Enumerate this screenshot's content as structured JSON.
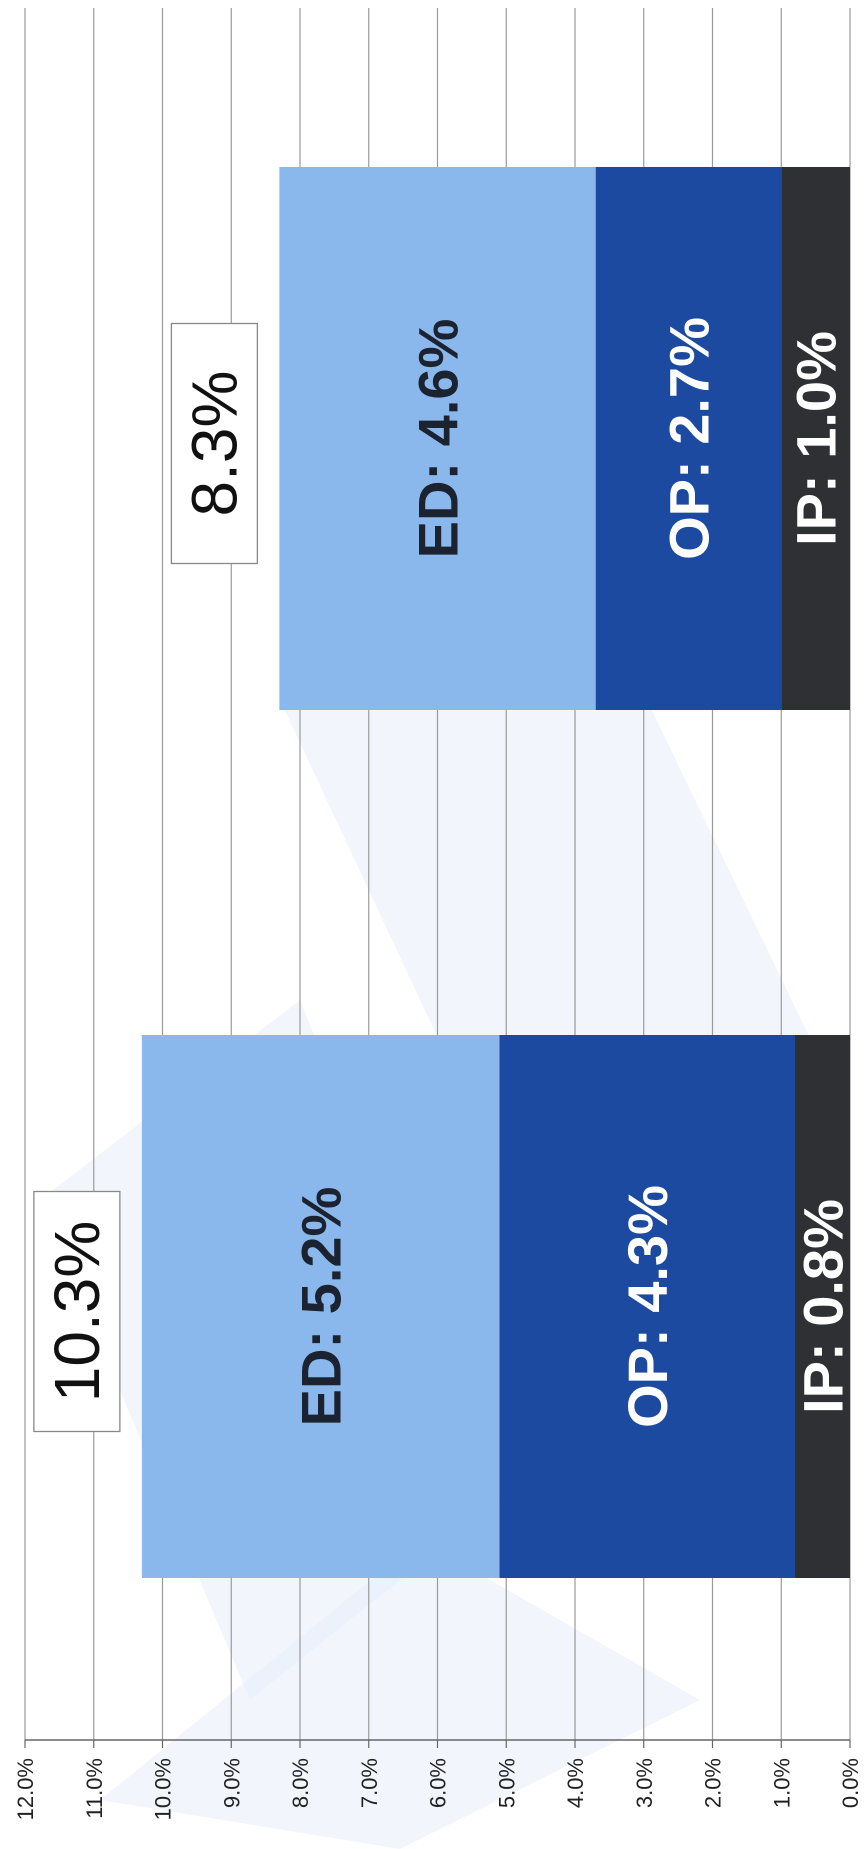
{
  "chart_data": {
    "type": "bar",
    "stacked": true,
    "orientation": "rotated-90-clockwise",
    "title": "",
    "xlabel": "",
    "ylabel": "",
    "ylim": [
      0,
      12
    ],
    "y_ticks": [
      "0.0%",
      "1.0%",
      "2.0%",
      "3.0%",
      "4.0%",
      "5.0%",
      "6.0%",
      "7.0%",
      "8.0%",
      "9.0%",
      "10.0%",
      "11.0%",
      "12.0%"
    ],
    "grid": true,
    "legend": "none",
    "bars": [
      {
        "total": 10.3,
        "total_label": "10.3%",
        "segments": [
          {
            "key": "IP",
            "value": 0.8,
            "label": "IP:  0.8%",
            "color": "#2e3033",
            "text_color": "#ffffff"
          },
          {
            "key": "OP",
            "value": 4.3,
            "label": "OP:  4.3%",
            "color": "#1c4aa0",
            "text_color": "#ffffff"
          },
          {
            "key": "ED",
            "value": 5.2,
            "label": "ED:  5.2%",
            "color": "#8bb8ec",
            "text_color": "#1b2230"
          }
        ]
      },
      {
        "total": 8.3,
        "total_label": "8.3%",
        "segments": [
          {
            "key": "IP",
            "value": 1.0,
            "label": "IP:  1.0%",
            "color": "#2e3033",
            "text_color": "#ffffff"
          },
          {
            "key": "OP",
            "value": 2.7,
            "label": "OP:  2.7%",
            "color": "#1c4aa0",
            "text_color": "#ffffff"
          },
          {
            "key": "ED",
            "value": 4.6,
            "label": "ED:  4.6%",
            "color": "#8bb8ec",
            "text_color": "#1b2230"
          }
        ]
      }
    ]
  }
}
